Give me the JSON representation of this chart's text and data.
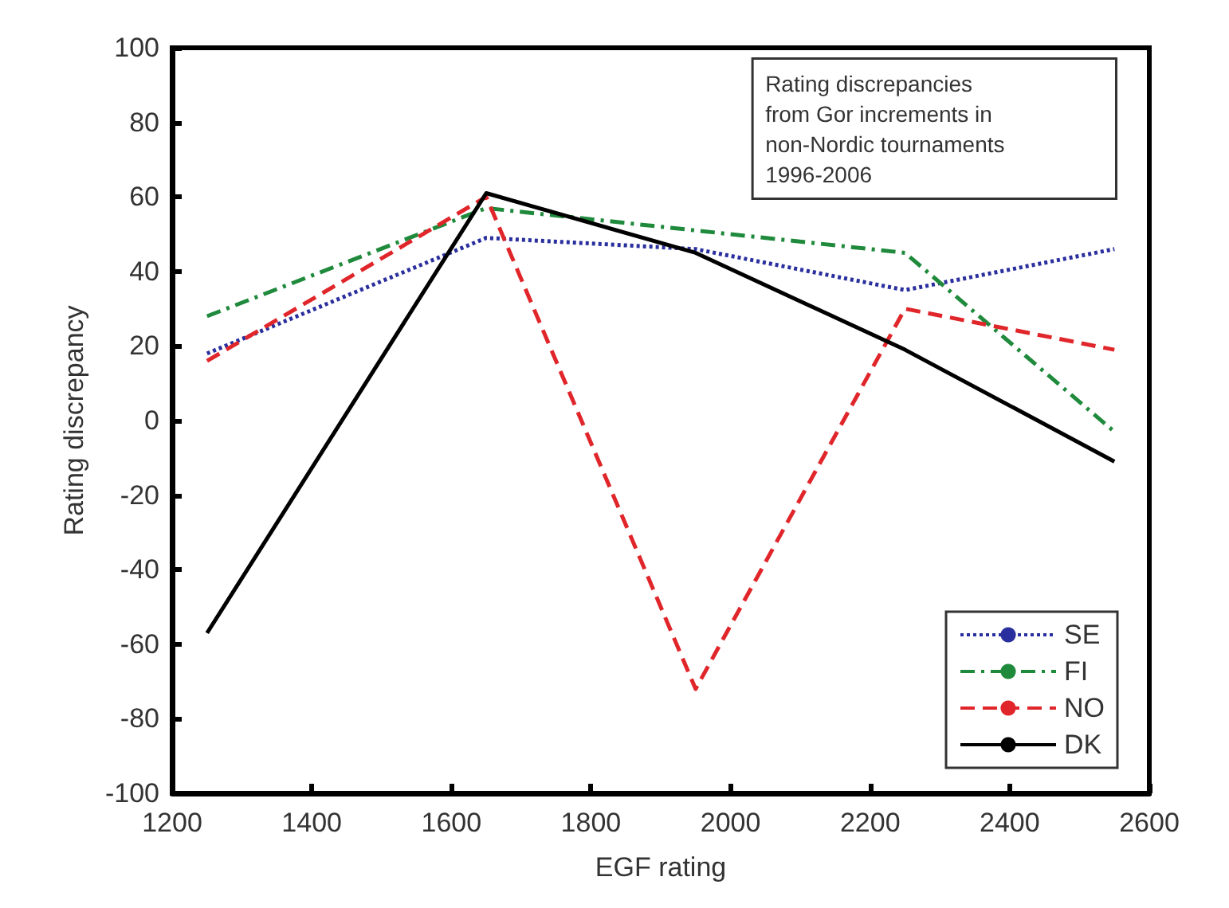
{
  "chart_data": {
    "type": "line",
    "xlabel": "EGF rating",
    "ylabel": "Rating discrepancy",
    "annotations": [
      "Rating discrepancies\nfrom Gor increments in\nnon-Nordic tournaments\n1996-2006"
    ],
    "x": [
      1250,
      1650,
      1950,
      2250,
      2550
    ],
    "series": [
      {
        "name": "SE",
        "color": "#2a2f9e",
        "line_style": "dotted",
        "values": [
          18,
          49,
          46,
          35,
          46
        ]
      },
      {
        "name": "FI",
        "color": "#1f8a3c",
        "line_style": "dashdot",
        "values": [
          28,
          57,
          51,
          45,
          -3
        ]
      },
      {
        "name": "NO",
        "color": "#e0262a",
        "line_style": "dashed",
        "values": [
          16,
          60,
          -72,
          30,
          19
        ]
      },
      {
        "name": "DK",
        "color": "#000000",
        "line_style": "solid",
        "values": [
          -57,
          61,
          45,
          19,
          -11
        ]
      }
    ],
    "xlim": [
      1200,
      2600
    ],
    "xticks": [
      1200,
      1400,
      1600,
      1800,
      2000,
      2200,
      2400,
      2600
    ],
    "ylim": [
      -100,
      100
    ],
    "yticks": [
      -100,
      -80,
      -60,
      -40,
      -20,
      0,
      20,
      40,
      60,
      80,
      100
    ],
    "grid": false,
    "legend": "bottom right",
    "marker": "none"
  }
}
